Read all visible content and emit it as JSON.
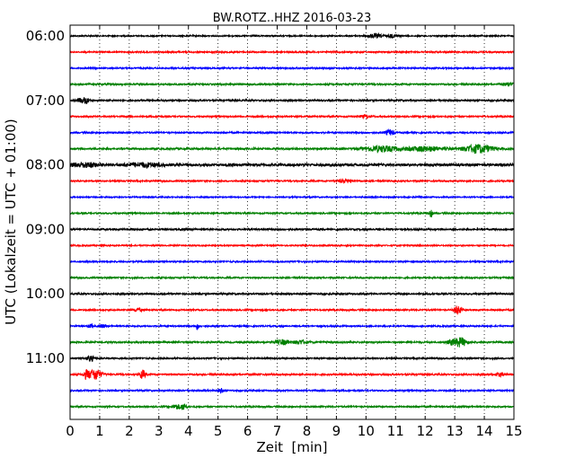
{
  "chart_data": {
    "type": "line",
    "title": "BW.ROTZ..HHZ 2016-03-23",
    "xlabel": "Zeit  [min]",
    "ylabel": "UTC (Lokalzeit = UTC + 01:00)",
    "xlim": [
      0,
      15
    ],
    "x_ticks": [
      0,
      1,
      2,
      3,
      4,
      5,
      6,
      7,
      8,
      9,
      10,
      11,
      12,
      13,
      14,
      15
    ],
    "x_tick_labels": [
      "0",
      "1",
      "2",
      "3",
      "4",
      "5",
      "6",
      "7",
      "8",
      "9",
      "10",
      "11",
      "12",
      "13",
      "14",
      "15"
    ],
    "y_tick_labels": [
      "06:00",
      "07:00",
      "08:00",
      "09:00",
      "10:00",
      "11:00"
    ],
    "grid": "vertical dotted",
    "trace_interval_min": 15,
    "trace_colors": [
      "#000000",
      "#ff0000",
      "#0000ff",
      "#008000"
    ],
    "traces": [
      {
        "start": "06:00",
        "color": "#000000",
        "noise": 0.7,
        "events": [
          {
            "t": 10.3,
            "amp": 2.2,
            "dur": 0.25
          },
          {
            "t": 10.9,
            "amp": 1.6,
            "dur": 0.2
          }
        ]
      },
      {
        "start": "06:15",
        "color": "#ff0000",
        "noise": 0.8,
        "events": []
      },
      {
        "start": "06:30",
        "color": "#0000ff",
        "noise": 0.8,
        "events": []
      },
      {
        "start": "06:45",
        "color": "#008000",
        "noise": 0.9,
        "events": [
          {
            "t": 14.8,
            "amp": 1.6,
            "dur": 0.2
          }
        ]
      },
      {
        "start": "07:00",
        "color": "#000000",
        "noise": 0.9,
        "events": [
          {
            "t": 0.35,
            "amp": 2.2,
            "dur": 0.15
          },
          {
            "t": 0.55,
            "amp": 3.0,
            "dur": 0.1
          }
        ]
      },
      {
        "start": "07:15",
        "color": "#ff0000",
        "noise": 0.8,
        "events": [
          {
            "t": 10.0,
            "amp": 1.5,
            "dur": 0.2
          }
        ]
      },
      {
        "start": "07:30",
        "color": "#0000ff",
        "noise": 0.8,
        "events": [
          {
            "t": 10.8,
            "amp": 3.0,
            "dur": 0.15
          }
        ]
      },
      {
        "start": "07:45",
        "color": "#008000",
        "noise": 1.0,
        "events": [
          {
            "t": 10.5,
            "amp": 3.0,
            "dur": 0.6
          },
          {
            "t": 12.0,
            "amp": 2.5,
            "dur": 0.6
          },
          {
            "t": 13.8,
            "amp": 4.5,
            "dur": 0.5
          }
        ]
      },
      {
        "start": "08:00",
        "color": "#000000",
        "noise": 1.4,
        "events": [
          {
            "t": 0.5,
            "amp": 2.2,
            "dur": 0.5
          },
          {
            "t": 2.5,
            "amp": 2.0,
            "dur": 0.6
          }
        ]
      },
      {
        "start": "08:15",
        "color": "#ff0000",
        "noise": 0.8,
        "events": [
          {
            "t": 9.3,
            "amp": 1.5,
            "dur": 0.3
          }
        ]
      },
      {
        "start": "08:30",
        "color": "#0000ff",
        "noise": 0.7,
        "events": []
      },
      {
        "start": "08:45",
        "color": "#008000",
        "noise": 0.8,
        "events": [
          {
            "t": 12.2,
            "amp": 4.5,
            "dur": 0.05
          }
        ]
      },
      {
        "start": "09:00",
        "color": "#000000",
        "noise": 0.9,
        "events": []
      },
      {
        "start": "09:15",
        "color": "#ff0000",
        "noise": 0.7,
        "events": []
      },
      {
        "start": "09:30",
        "color": "#0000ff",
        "noise": 0.8,
        "events": []
      },
      {
        "start": "09:45",
        "color": "#008000",
        "noise": 0.8,
        "events": []
      },
      {
        "start": "10:00",
        "color": "#000000",
        "noise": 0.9,
        "events": []
      },
      {
        "start": "10:15",
        "color": "#ff0000",
        "noise": 0.8,
        "events": [
          {
            "t": 13.1,
            "amp": 5.0,
            "dur": 0.12
          },
          {
            "t": 2.3,
            "amp": 1.5,
            "dur": 0.15
          }
        ]
      },
      {
        "start": "10:30",
        "color": "#0000ff",
        "noise": 0.8,
        "events": [
          {
            "t": 0.7,
            "amp": 2.0,
            "dur": 0.08
          },
          {
            "t": 1.1,
            "amp": 1.8,
            "dur": 0.08
          },
          {
            "t": 4.3,
            "amp": 3.5,
            "dur": 0.05
          }
        ]
      },
      {
        "start": "10:45",
        "color": "#008000",
        "noise": 0.9,
        "events": [
          {
            "t": 7.2,
            "amp": 2.6,
            "dur": 0.25
          },
          {
            "t": 7.8,
            "amp": 2.2,
            "dur": 0.2
          },
          {
            "t": 13.2,
            "amp": 5.0,
            "dur": 0.2
          },
          {
            "t": 12.9,
            "amp": 2.5,
            "dur": 0.15
          }
        ]
      },
      {
        "start": "11:00",
        "color": "#000000",
        "noise": 0.8,
        "events": [
          {
            "t": 0.7,
            "amp": 3.0,
            "dur": 0.12
          }
        ]
      },
      {
        "start": "11:15",
        "color": "#ff0000",
        "noise": 0.9,
        "events": [
          {
            "t": 0.55,
            "amp": 4.5,
            "dur": 0.1
          },
          {
            "t": 0.85,
            "amp": 6.0,
            "dur": 0.2
          },
          {
            "t": 2.45,
            "amp": 5.0,
            "dur": 0.1
          },
          {
            "t": 14.5,
            "amp": 1.6,
            "dur": 0.15
          }
        ]
      },
      {
        "start": "11:30",
        "color": "#0000ff",
        "noise": 0.8,
        "events": [
          {
            "t": 5.1,
            "amp": 2.5,
            "dur": 0.08
          }
        ]
      },
      {
        "start": "11:45",
        "color": "#008000",
        "noise": 0.8,
        "events": [
          {
            "t": 3.6,
            "amp": 2.5,
            "dur": 0.15
          },
          {
            "t": 3.85,
            "amp": 3.5,
            "dur": 0.1
          }
        ]
      }
    ]
  }
}
